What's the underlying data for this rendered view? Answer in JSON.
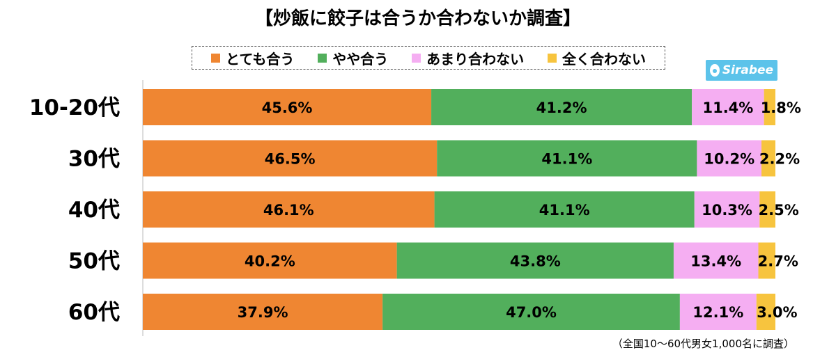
{
  "title": "【炒飯に餃子は合うか合わないか調査】",
  "logo_text": "Sirabee",
  "footnote": "（全国10〜60代男女1,000名に調査）",
  "chart_data": {
    "type": "bar",
    "stacked": true,
    "orientation": "horizontal",
    "normalized_percent": true,
    "categories": [
      "10-20代",
      "30代",
      "40代",
      "50代",
      "60代"
    ],
    "series": [
      {
        "name": "とても合う",
        "color": "#ef8632",
        "values": [
          45.6,
          46.5,
          46.1,
          40.2,
          37.9
        ]
      },
      {
        "name": "やや合う",
        "color": "#52af5c",
        "values": [
          41.2,
          41.1,
          41.1,
          43.8,
          47.0
        ]
      },
      {
        "name": "あまり合わない",
        "color": "#f5aef2",
        "values": [
          11.4,
          10.2,
          10.3,
          13.4,
          12.1
        ]
      },
      {
        "name": "全く合わない",
        "color": "#f7c43e",
        "values": [
          1.8,
          2.2,
          2.5,
          2.7,
          3.0
        ]
      }
    ],
    "legend_position": "top",
    "xlim": [
      0,
      100
    ]
  }
}
